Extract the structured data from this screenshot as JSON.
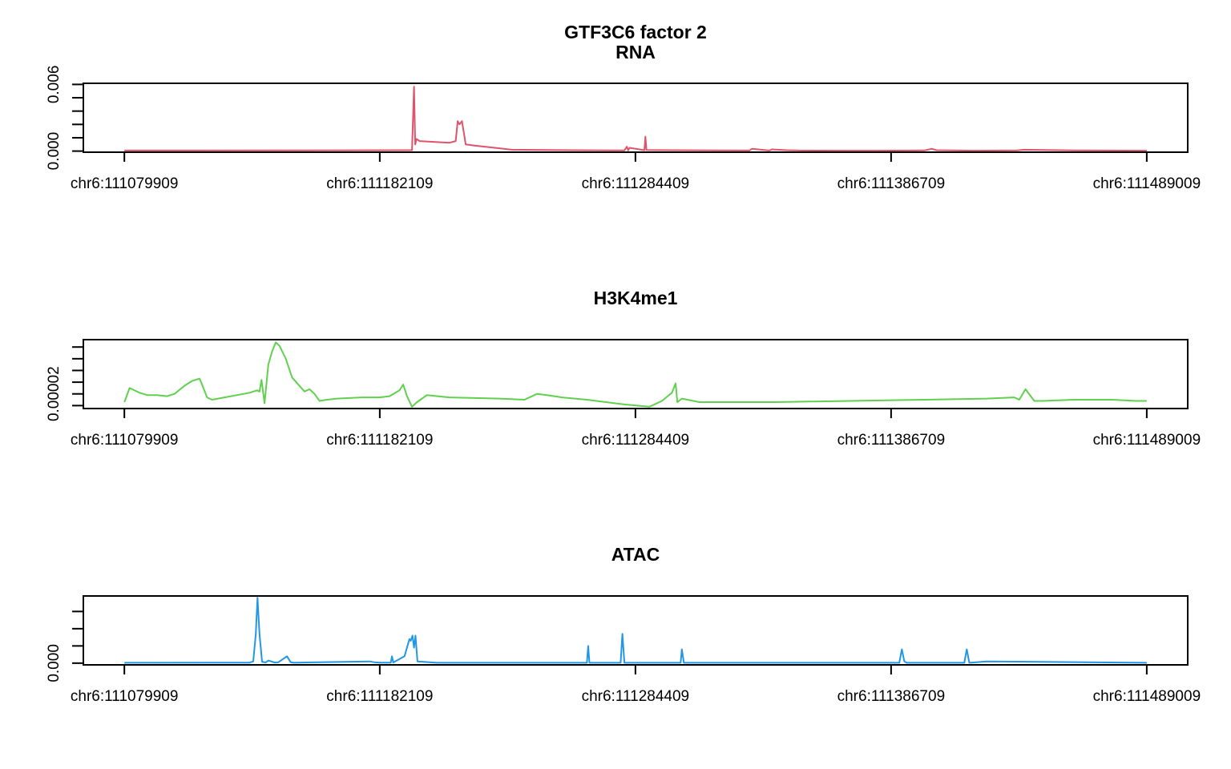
{
  "figure": {
    "title_line1": "GTF3C6 factor 2"
  },
  "chart_data": [
    {
      "type": "line",
      "title": "RNA",
      "color": "#DF536B",
      "x_ticks": [
        111079909,
        111182109,
        111284409,
        111386709,
        111489009
      ],
      "x_tick_labels": [
        "chr6:111079909",
        "chr6:111182109",
        "chr6:111284409",
        "chr6:111386709",
        "chr6:111489009"
      ],
      "xlim": [
        111063500,
        111505400
      ],
      "ylim": [
        -0.0001,
        0.0061
      ],
      "y_ticks": [
        0,
        0.0012,
        0.0024,
        0.0036,
        0.0048,
        0.006
      ],
      "y_tick_labels": [
        "0.000",
        "",
        "",
        "",
        "",
        "0.006"
      ],
      "series": [
        {
          "x": [
            111079909,
            111150000,
            111195000,
            111195800,
            111196300,
            111196800,
            111198000,
            111210000,
            111212500,
            111213300,
            111214000,
            111215000,
            111215800,
            111216500,
            111220000,
            111230000,
            111235000,
            111260000,
            111280000,
            111281000,
            111281500,
            111282000,
            111288000,
            111288400,
            111288800,
            111300000,
            111330000,
            111331000,
            111338000,
            111339000,
            111345000,
            111350000,
            111370000,
            111380000,
            111400000,
            111403000,
            111405000,
            111420000,
            111437000,
            111440000,
            111460000,
            111489009
          ],
          "y": [
            5e-05,
            6e-05,
            8e-05,
            0.0058,
            0.0006,
            0.0011,
            0.0009,
            0.00075,
            0.0009,
            0.0027,
            0.0024,
            0.0027,
            0.0016,
            0.0006,
            0.0005,
            0.00025,
            0.00012,
            8e-05,
            6e-05,
            0.0004,
            6e-05,
            0.0003,
            8e-05,
            0.0013,
            0.0001,
            8e-05,
            5e-05,
            0.0002,
            5e-05,
            0.00015,
            8e-05,
            5e-05,
            4e-05,
            4e-05,
            6e-05,
            0.0002,
            8e-05,
            4e-05,
            6e-05,
            0.00012,
            6e-05,
            4e-05
          ]
        }
      ]
    },
    {
      "type": "line",
      "title": "H3K4me1",
      "color": "#61D04F",
      "x_ticks": [
        111079909,
        111182109,
        111284409,
        111386709,
        111489009
      ],
      "x_tick_labels": [
        "chr6:111079909",
        "chr6:111182109",
        "chr6:111284409",
        "chr6:111386709",
        "chr6:111489009"
      ],
      "xlim": [
        111063500,
        111505400
      ],
      "ylim": [
        7.5e-06,
        6.63e-05
      ],
      "y_ticks": [
        1e-05,
        2e-05,
        3e-05,
        4e-05,
        5e-05,
        6e-05
      ],
      "y_tick_labels": [
        "",
        "0.00002",
        "",
        "",
        "",
        ""
      ],
      "series": [
        {
          "x": [
            111079909,
            111082000,
            111086000,
            111089000,
            111093000,
            111097000,
            111100000,
            111104000,
            111107000,
            111110000,
            111111000,
            111113000,
            111115000,
            111120000,
            111125000,
            111130000,
            111133000,
            111134000,
            111134800,
            111136000,
            111137500,
            111139000,
            111140500,
            111142000,
            111144500,
            111147000,
            111152000,
            111154000,
            111156000,
            111158000,
            111161000,
            111165000,
            111175000,
            111182000,
            111186000,
            111190000,
            111191500,
            111193000,
            111195000,
            111197000,
            111201000,
            111210000,
            111230000,
            111240000,
            111245000,
            111249000,
            111255000,
            111265000,
            111280000,
            111290000,
            111295000,
            111299000,
            111300500,
            111301200,
            111303000,
            111310000,
            111340000,
            111400000,
            111425000,
            111436000,
            111438000,
            111440500,
            111444000,
            111447000,
            111460000,
            111475000,
            111485000,
            111489009
          ],
          "y": [
            1.3e-05,
            2.5e-05,
            2.1e-05,
            1.9e-05,
            1.9e-05,
            1.8e-05,
            2e-05,
            2.7e-05,
            3.1e-05,
            3.3e-05,
            2.8e-05,
            1.7e-05,
            1.5e-05,
            1.7e-05,
            1.9e-05,
            2.1e-05,
            2.3e-05,
            2.2e-05,
            3.2e-05,
            1.2e-05,
            4.5e-05,
            5.6e-05,
            6.4e-05,
            6.1e-05,
            5e-05,
            3.4e-05,
            2.2e-05,
            2.4e-05,
            2e-05,
            1.4e-05,
            1.5e-05,
            1.6e-05,
            1.7e-05,
            1.7e-05,
            1.8e-05,
            2.3e-05,
            2.8e-05,
            1.8e-05,
            9e-06,
            1.3e-05,
            1.9e-05,
            1.7e-05,
            1.6e-05,
            1.5e-05,
            2e-05,
            1.9e-05,
            1.7e-05,
            1.5e-05,
            1.1e-05,
            9e-06,
            1.4e-05,
            2.1e-05,
            2.9e-05,
            1.3e-05,
            1.6e-05,
            1.3e-05,
            1.3e-05,
            1.5e-05,
            1.6e-05,
            1.7e-05,
            1.5e-05,
            2.4e-05,
            1.4e-05,
            1.4e-05,
            1.5e-05,
            1.5e-05,
            1.4e-05,
            1.4e-05
          ]
        }
      ]
    },
    {
      "type": "line",
      "title": "ATAC",
      "color": "#2297E6",
      "x_ticks": [
        111079909,
        111182109,
        111284409,
        111386709,
        111489009
      ],
      "x_tick_labels": [
        "chr6:111079909",
        "chr6:111182109",
        "chr6:111284409",
        "chr6:111386709",
        "chr6:111489009"
      ],
      "xlim": [
        111063500,
        111505400
      ],
      "ylim": [
        -0.0001,
        0.0039
      ],
      "y_ticks": [
        0,
        0.001,
        0.002,
        0.003
      ],
      "y_tick_labels": [
        "0.000",
        "",
        "",
        ""
      ],
      "series": [
        {
          "x": [
            111079909,
            111130000,
            111131500,
            111132500,
            111133200,
            111134000,
            111135000,
            111136500,
            111137500,
            111140000,
            111141500,
            111145000,
            111146500,
            111147500,
            111149000,
            111178000,
            111180000,
            111182000,
            111186500,
            111187000,
            111187500,
            111192000,
            111194000,
            111194500,
            111195200,
            111195800,
            111196400,
            111197200,
            111205000,
            111265000,
            111265500,
            111266000,
            111267000,
            111278500,
            111279200,
            111280000,
            111281000,
            111302500,
            111303000,
            111303800,
            111305000,
            111390000,
            111391000,
            111392000,
            111393000,
            111416000,
            111417000,
            111418000,
            111425000,
            111489009
          ],
          "y": [
            2e-05,
            3e-05,
            0.0001,
            0.0017,
            0.0038,
            0.0017,
            8e-05,
            4e-05,
            0.00015,
            4e-05,
            5e-05,
            0.0004,
            5e-05,
            3e-05,
            3e-05,
            0.0001,
            5e-05,
            3e-05,
            3e-05,
            0.0004,
            4e-05,
            0.0004,
            0.0014,
            0.0013,
            0.0016,
            0.0009,
            0.0016,
            0.0001,
            2e-05,
            2e-05,
            0.001,
            2e-05,
            2e-05,
            2e-05,
            0.0017,
            2e-05,
            2e-05,
            2e-05,
            0.0008,
            2e-05,
            2e-05,
            2e-05,
            0.0008,
            0.0001,
            2e-05,
            2e-05,
            0.0008,
            2e-05,
            0.0001,
            2e-05
          ]
        }
      ]
    }
  ]
}
